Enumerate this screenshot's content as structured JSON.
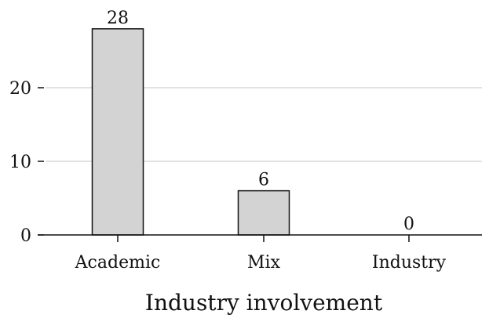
{
  "chart_data": {
    "type": "bar",
    "categories": [
      "Academic",
      "Mix",
      "Industry"
    ],
    "values": [
      28,
      6,
      0
    ],
    "data_labels": [
      "28",
      "6",
      "0"
    ],
    "xlabel": "Industry involvement",
    "ylabel": "",
    "ylim": [
      0,
      30
    ],
    "yticks": [
      0,
      10,
      20
    ],
    "ytick_labels": [
      "0",
      "10",
      "20"
    ],
    "grid": "horizontal",
    "bar_color": "#d3d3d3",
    "edge_color": "#111111",
    "grid_color": "#d9d9d9"
  }
}
